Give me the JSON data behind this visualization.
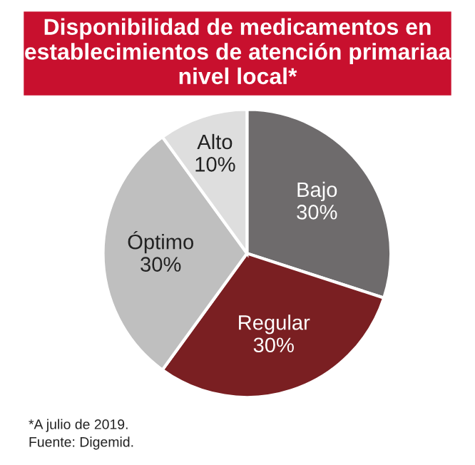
{
  "chart_data": {
    "type": "pie",
    "title": "Disponibilidad de medicamentos en establecimientos de atención primariaa nivel local*",
    "categories": [
      "Bajo",
      "Regular",
      "Óptimo",
      "Alto"
    ],
    "values": [
      30,
      30,
      30,
      10
    ],
    "value_labels": [
      "30%",
      "30%",
      "30%",
      "10%"
    ],
    "colors": [
      "#6e6b6c",
      "#7a1f22",
      "#bfbfbf",
      "#dedede"
    ],
    "annotations": [
      "*A julio de 2019.",
      "Fuente: Digemid."
    ]
  }
}
